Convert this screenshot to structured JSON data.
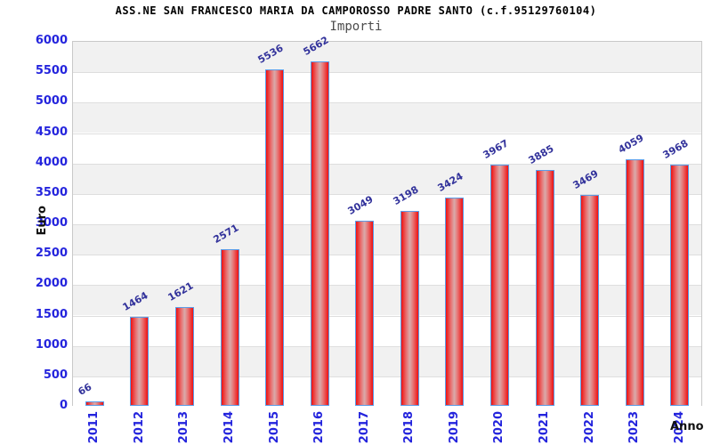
{
  "header": {
    "title": "ASS.NE SAN FRANCESCO MARIA DA CAMPOROSSO PADRE SANTO (c.f.95129760104)",
    "subtitle": "Importi"
  },
  "chart_data": {
    "type": "bar",
    "title": "ASS.NE SAN FRANCESCO MARIA DA CAMPOROSSO PADRE SANTO (c.f.95129760104)",
    "subtitle": "Importi",
    "xlabel": "Anno",
    "ylabel": "Euro",
    "categories": [
      "2011",
      "2012",
      "2013",
      "2014",
      "2015",
      "2016",
      "2017",
      "2018",
      "2019",
      "2020",
      "2021",
      "2022",
      "2023",
      "2024"
    ],
    "values": [
      66,
      1464,
      1621,
      2571,
      5536,
      5662,
      3049,
      3198,
      3424,
      3967,
      3885,
      3469,
      4059,
      3968
    ],
    "yticks": [
      0,
      500,
      1000,
      1500,
      2000,
      2500,
      3000,
      3500,
      4000,
      4500,
      5000,
      5500,
      6000
    ],
    "ylim": [
      0,
      6000
    ],
    "grid": "horizontal gridlines with alternating gray/white bands",
    "legend_position": "none"
  },
  "colors": {
    "bar_fill": "#ee1111",
    "bar_center_highlight": "#d9abab",
    "bar_border": "#5b9ce8",
    "tick_label": "#2424dd",
    "value_label": "#32329b",
    "axis_title": "#111111",
    "subtitle": "#4b4b4b",
    "band_gray": "#f1f1f1",
    "grid_line": "#dedede",
    "plot_border": "#c9c9c9",
    "background": "#ffffff"
  }
}
